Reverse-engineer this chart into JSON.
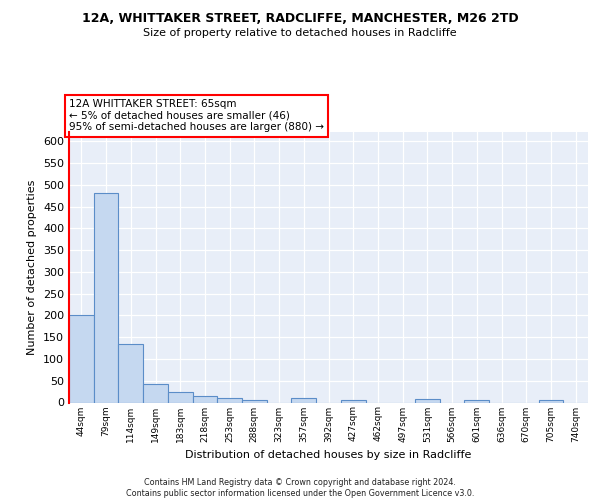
{
  "title1": "12A, WHITTAKER STREET, RADCLIFFE, MANCHESTER, M26 2TD",
  "title2": "Size of property relative to detached houses in Radcliffe",
  "xlabel": "Distribution of detached houses by size in Radcliffe",
  "ylabel": "Number of detached properties",
  "bar_color": "#c5d8f0",
  "bar_edge_color": "#5b8dc8",
  "bg_color": "#e8eef8",
  "grid_color": "#ffffff",
  "categories": [
    "44sqm",
    "79sqm",
    "114sqm",
    "149sqm",
    "183sqm",
    "218sqm",
    "253sqm",
    "288sqm",
    "323sqm",
    "357sqm",
    "392sqm",
    "427sqm",
    "462sqm",
    "497sqm",
    "531sqm",
    "566sqm",
    "601sqm",
    "636sqm",
    "670sqm",
    "705sqm",
    "740sqm"
  ],
  "values": [
    202,
    480,
    135,
    43,
    25,
    15,
    11,
    6,
    0,
    10,
    0,
    6,
    0,
    0,
    8,
    0,
    5,
    0,
    0,
    5,
    0
  ],
  "ylim": [
    0,
    620
  ],
  "yticks": [
    0,
    50,
    100,
    150,
    200,
    250,
    300,
    350,
    400,
    450,
    500,
    550,
    600
  ],
  "annotation_text_line1": "12A WHITTAKER STREET: 65sqm",
  "annotation_text_line2": "← 5% of detached houses are smaller (46)",
  "annotation_text_line3": "95% of semi-detached houses are larger (880) →",
  "footer1": "Contains HM Land Registry data © Crown copyright and database right 2024.",
  "footer2": "Contains public sector information licensed under the Open Government Licence v3.0."
}
